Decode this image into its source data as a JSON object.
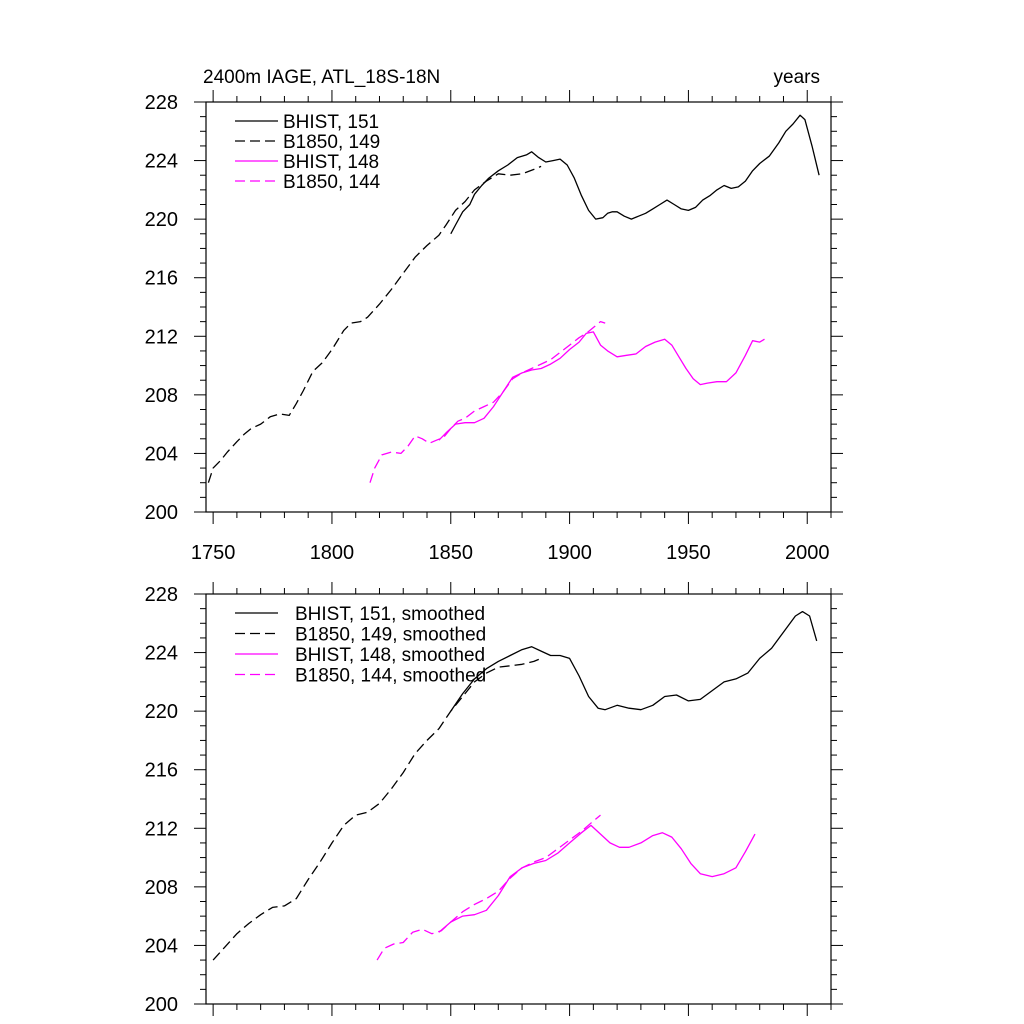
{
  "chart_data": [
    {
      "type": "line",
      "title": "2400m IAGE, ATL_18S-18N",
      "right_title": "years",
      "xlim": [
        1747,
        2010
      ],
      "ylim": [
        200,
        228
      ],
      "x_tick_labels": [
        "1750",
        "1800",
        "1850",
        "1900",
        "1950",
        "2000"
      ],
      "x_ticks": [
        1750,
        1800,
        1850,
        1900,
        1950,
        2000
      ],
      "y_tick_labels": [
        "200",
        "204",
        "208",
        "212",
        "216",
        "220",
        "224",
        "228"
      ],
      "y_ticks": [
        200,
        204,
        208,
        212,
        216,
        220,
        224,
        228
      ],
      "legend_placement": "top-left",
      "series": [
        {
          "name": "BHIST, 151",
          "color": "#000000",
          "dash": "solid",
          "x": [
            1850,
            1852,
            1855,
            1858,
            1860,
            1863,
            1866,
            1870,
            1874,
            1878,
            1882,
            1884,
            1887,
            1890,
            1893,
            1896,
            1899,
            1902,
            1905,
            1908,
            1911,
            1914,
            1916,
            1918,
            1920,
            1923,
            1926,
            1929,
            1932,
            1935,
            1938,
            1941,
            1944,
            1947,
            1950,
            1953,
            1956,
            1959,
            1962,
            1965,
            1968,
            1971,
            1974,
            1977,
            1980,
            1984,
            1988,
            1991,
            1994,
            1997,
            1999,
            2002,
            2005
          ],
          "y": [
            219.0,
            219.6,
            220.5,
            221.0,
            221.7,
            222.3,
            222.8,
            223.3,
            223.7,
            224.2,
            224.4,
            224.6,
            224.2,
            223.9,
            224.0,
            224.1,
            223.7,
            222.8,
            221.6,
            220.6,
            220.0,
            220.1,
            220.4,
            220.5,
            220.5,
            220.2,
            220.0,
            220.2,
            220.4,
            220.7,
            221.0,
            221.3,
            221.0,
            220.7,
            220.6,
            220.8,
            221.3,
            221.6,
            222.0,
            222.3,
            222.1,
            222.2,
            222.6,
            223.3,
            223.8,
            224.3,
            225.2,
            226.0,
            226.5,
            227.1,
            226.8,
            225.0,
            223.0
          ]
        },
        {
          "name": "B1850, 149",
          "color": "#000000",
          "dash": "dashed",
          "x": [
            1748,
            1750,
            1753,
            1756,
            1760,
            1763,
            1766,
            1770,
            1774,
            1778,
            1782,
            1785,
            1788,
            1792,
            1796,
            1800,
            1805,
            1808,
            1812,
            1815,
            1820,
            1825,
            1830,
            1835,
            1840,
            1845,
            1848,
            1852,
            1856,
            1860,
            1865,
            1870,
            1875,
            1880,
            1885,
            1888
          ],
          "y": [
            202.0,
            203.0,
            203.5,
            204.1,
            204.8,
            205.3,
            205.7,
            206.0,
            206.5,
            206.7,
            206.6,
            207.4,
            208.3,
            209.6,
            210.2,
            211.1,
            212.4,
            212.9,
            213.0,
            213.3,
            214.2,
            215.2,
            216.3,
            217.4,
            218.2,
            218.9,
            219.6,
            220.6,
            221.2,
            222.0,
            222.6,
            223.1,
            223.0,
            223.1,
            223.4,
            223.6
          ]
        },
        {
          "name": "BHIST, 148",
          "color": "#ff00ff",
          "dash": "solid",
          "x": [
            1845,
            1848,
            1852,
            1856,
            1860,
            1864,
            1868,
            1872,
            1876,
            1880,
            1884,
            1888,
            1892,
            1896,
            1900,
            1904,
            1907,
            1910,
            1913,
            1916,
            1920,
            1924,
            1928,
            1932,
            1936,
            1940,
            1943,
            1946,
            1949,
            1952,
            1955,
            1958,
            1962,
            1966,
            1970,
            1974,
            1977,
            1980,
            1982
          ],
          "y": [
            204.9,
            205.4,
            206.0,
            206.1,
            206.1,
            206.4,
            207.2,
            208.2,
            209.2,
            209.5,
            209.7,
            209.8,
            210.1,
            210.5,
            211.1,
            211.6,
            212.2,
            212.3,
            211.4,
            211.0,
            210.6,
            210.7,
            210.8,
            211.3,
            211.6,
            211.8,
            211.4,
            210.6,
            209.8,
            209.1,
            208.7,
            208.8,
            208.9,
            208.9,
            209.5,
            210.7,
            211.7,
            211.6,
            211.8
          ]
        },
        {
          "name": "B1850, 144",
          "color": "#ff00ff",
          "dash": "dashed",
          "x": [
            1816,
            1818,
            1821,
            1825,
            1829,
            1832,
            1835,
            1838,
            1841,
            1844,
            1847,
            1850,
            1853,
            1856,
            1860,
            1864,
            1868,
            1872,
            1876,
            1880,
            1884,
            1888,
            1892,
            1896,
            1900,
            1904,
            1907,
            1910,
            1913,
            1915
          ],
          "y": [
            202.0,
            203.0,
            203.9,
            204.1,
            204.0,
            204.5,
            205.2,
            205.0,
            204.7,
            204.9,
            205.1,
            205.7,
            206.2,
            206.4,
            206.9,
            207.2,
            207.5,
            208.2,
            209.1,
            209.5,
            209.8,
            210.1,
            210.4,
            210.9,
            211.4,
            211.9,
            212.2,
            212.6,
            213.0,
            212.9
          ]
        }
      ]
    },
    {
      "type": "line",
      "xlim": [
        1747,
        2010
      ],
      "ylim": [
        200,
        228
      ],
      "x_ticks": [
        1750,
        1800,
        1850,
        1900,
        1950,
        2000
      ],
      "y_tick_labels": [
        "200",
        "204",
        "208",
        "212",
        "216",
        "220",
        "224",
        "228"
      ],
      "y_ticks": [
        200,
        204,
        208,
        212,
        216,
        220,
        224,
        228
      ],
      "legend_placement": "top-left",
      "series": [
        {
          "name": "BHIST, 151, smoothed",
          "color": "#000000",
          "dash": "solid",
          "x": [
            1850,
            1855,
            1860,
            1865,
            1870,
            1875,
            1880,
            1884,
            1888,
            1892,
            1896,
            1900,
            1904,
            1908,
            1912,
            1915,
            1920,
            1925,
            1930,
            1935,
            1940,
            1945,
            1950,
            1955,
            1960,
            1965,
            1970,
            1975,
            1980,
            1985,
            1990,
            1995,
            1998,
            2001,
            2004
          ],
          "y": [
            220.0,
            221.2,
            222.2,
            222.9,
            223.4,
            223.8,
            224.2,
            224.4,
            224.1,
            223.8,
            223.8,
            223.6,
            222.4,
            221.0,
            220.2,
            220.1,
            220.4,
            220.2,
            220.1,
            220.4,
            221.0,
            221.1,
            220.7,
            220.8,
            221.4,
            222.0,
            222.2,
            222.6,
            223.6,
            224.3,
            225.4,
            226.5,
            226.8,
            226.5,
            224.8
          ]
        },
        {
          "name": "B1850, 149, smoothed",
          "color": "#000000",
          "dash": "dashed",
          "x": [
            1750,
            1755,
            1760,
            1765,
            1770,
            1775,
            1780,
            1785,
            1790,
            1795,
            1800,
            1805,
            1810,
            1815,
            1820,
            1825,
            1830,
            1835,
            1840,
            1845,
            1850,
            1855,
            1860,
            1865,
            1870,
            1875,
            1880,
            1885,
            1888
          ],
          "y": [
            203.0,
            203.9,
            204.8,
            205.5,
            206.1,
            206.6,
            206.7,
            207.2,
            208.5,
            209.7,
            211.0,
            212.2,
            212.9,
            213.1,
            213.7,
            214.7,
            215.8,
            217.1,
            218.0,
            218.8,
            220.0,
            221.0,
            222.0,
            222.6,
            223.0,
            223.1,
            223.2,
            223.4,
            223.6
          ]
        },
        {
          "name": "BHIST, 148, smoothed",
          "color": "#ff00ff",
          "dash": "solid",
          "x": [
            1845,
            1850,
            1855,
            1860,
            1865,
            1870,
            1875,
            1880,
            1885,
            1890,
            1895,
            1900,
            1905,
            1909,
            1913,
            1917,
            1921,
            1925,
            1930,
            1935,
            1939,
            1943,
            1947,
            1951,
            1955,
            1960,
            1965,
            1970,
            1974,
            1978
          ],
          "y": [
            204.9,
            205.6,
            206.0,
            206.1,
            206.4,
            207.4,
            208.7,
            209.3,
            209.6,
            209.8,
            210.3,
            211.0,
            211.7,
            212.2,
            211.6,
            211.0,
            210.7,
            210.7,
            211.0,
            211.5,
            211.7,
            211.4,
            210.6,
            209.6,
            208.9,
            208.7,
            208.9,
            209.3,
            210.4,
            211.6
          ]
        },
        {
          "name": "B1850, 144, smoothed",
          "color": "#ff00ff",
          "dash": "dashed",
          "x": [
            1819,
            1822,
            1826,
            1830,
            1834,
            1838,
            1842,
            1846,
            1850,
            1855,
            1860,
            1865,
            1870,
            1875,
            1880,
            1885,
            1890,
            1895,
            1900,
            1905,
            1910,
            1913
          ],
          "y": [
            203.0,
            203.8,
            204.1,
            204.2,
            204.9,
            205.1,
            204.8,
            205.0,
            205.6,
            206.3,
            206.8,
            207.2,
            207.7,
            208.6,
            209.3,
            209.7,
            210.0,
            210.6,
            211.2,
            211.8,
            212.5,
            212.9
          ]
        }
      ]
    }
  ]
}
